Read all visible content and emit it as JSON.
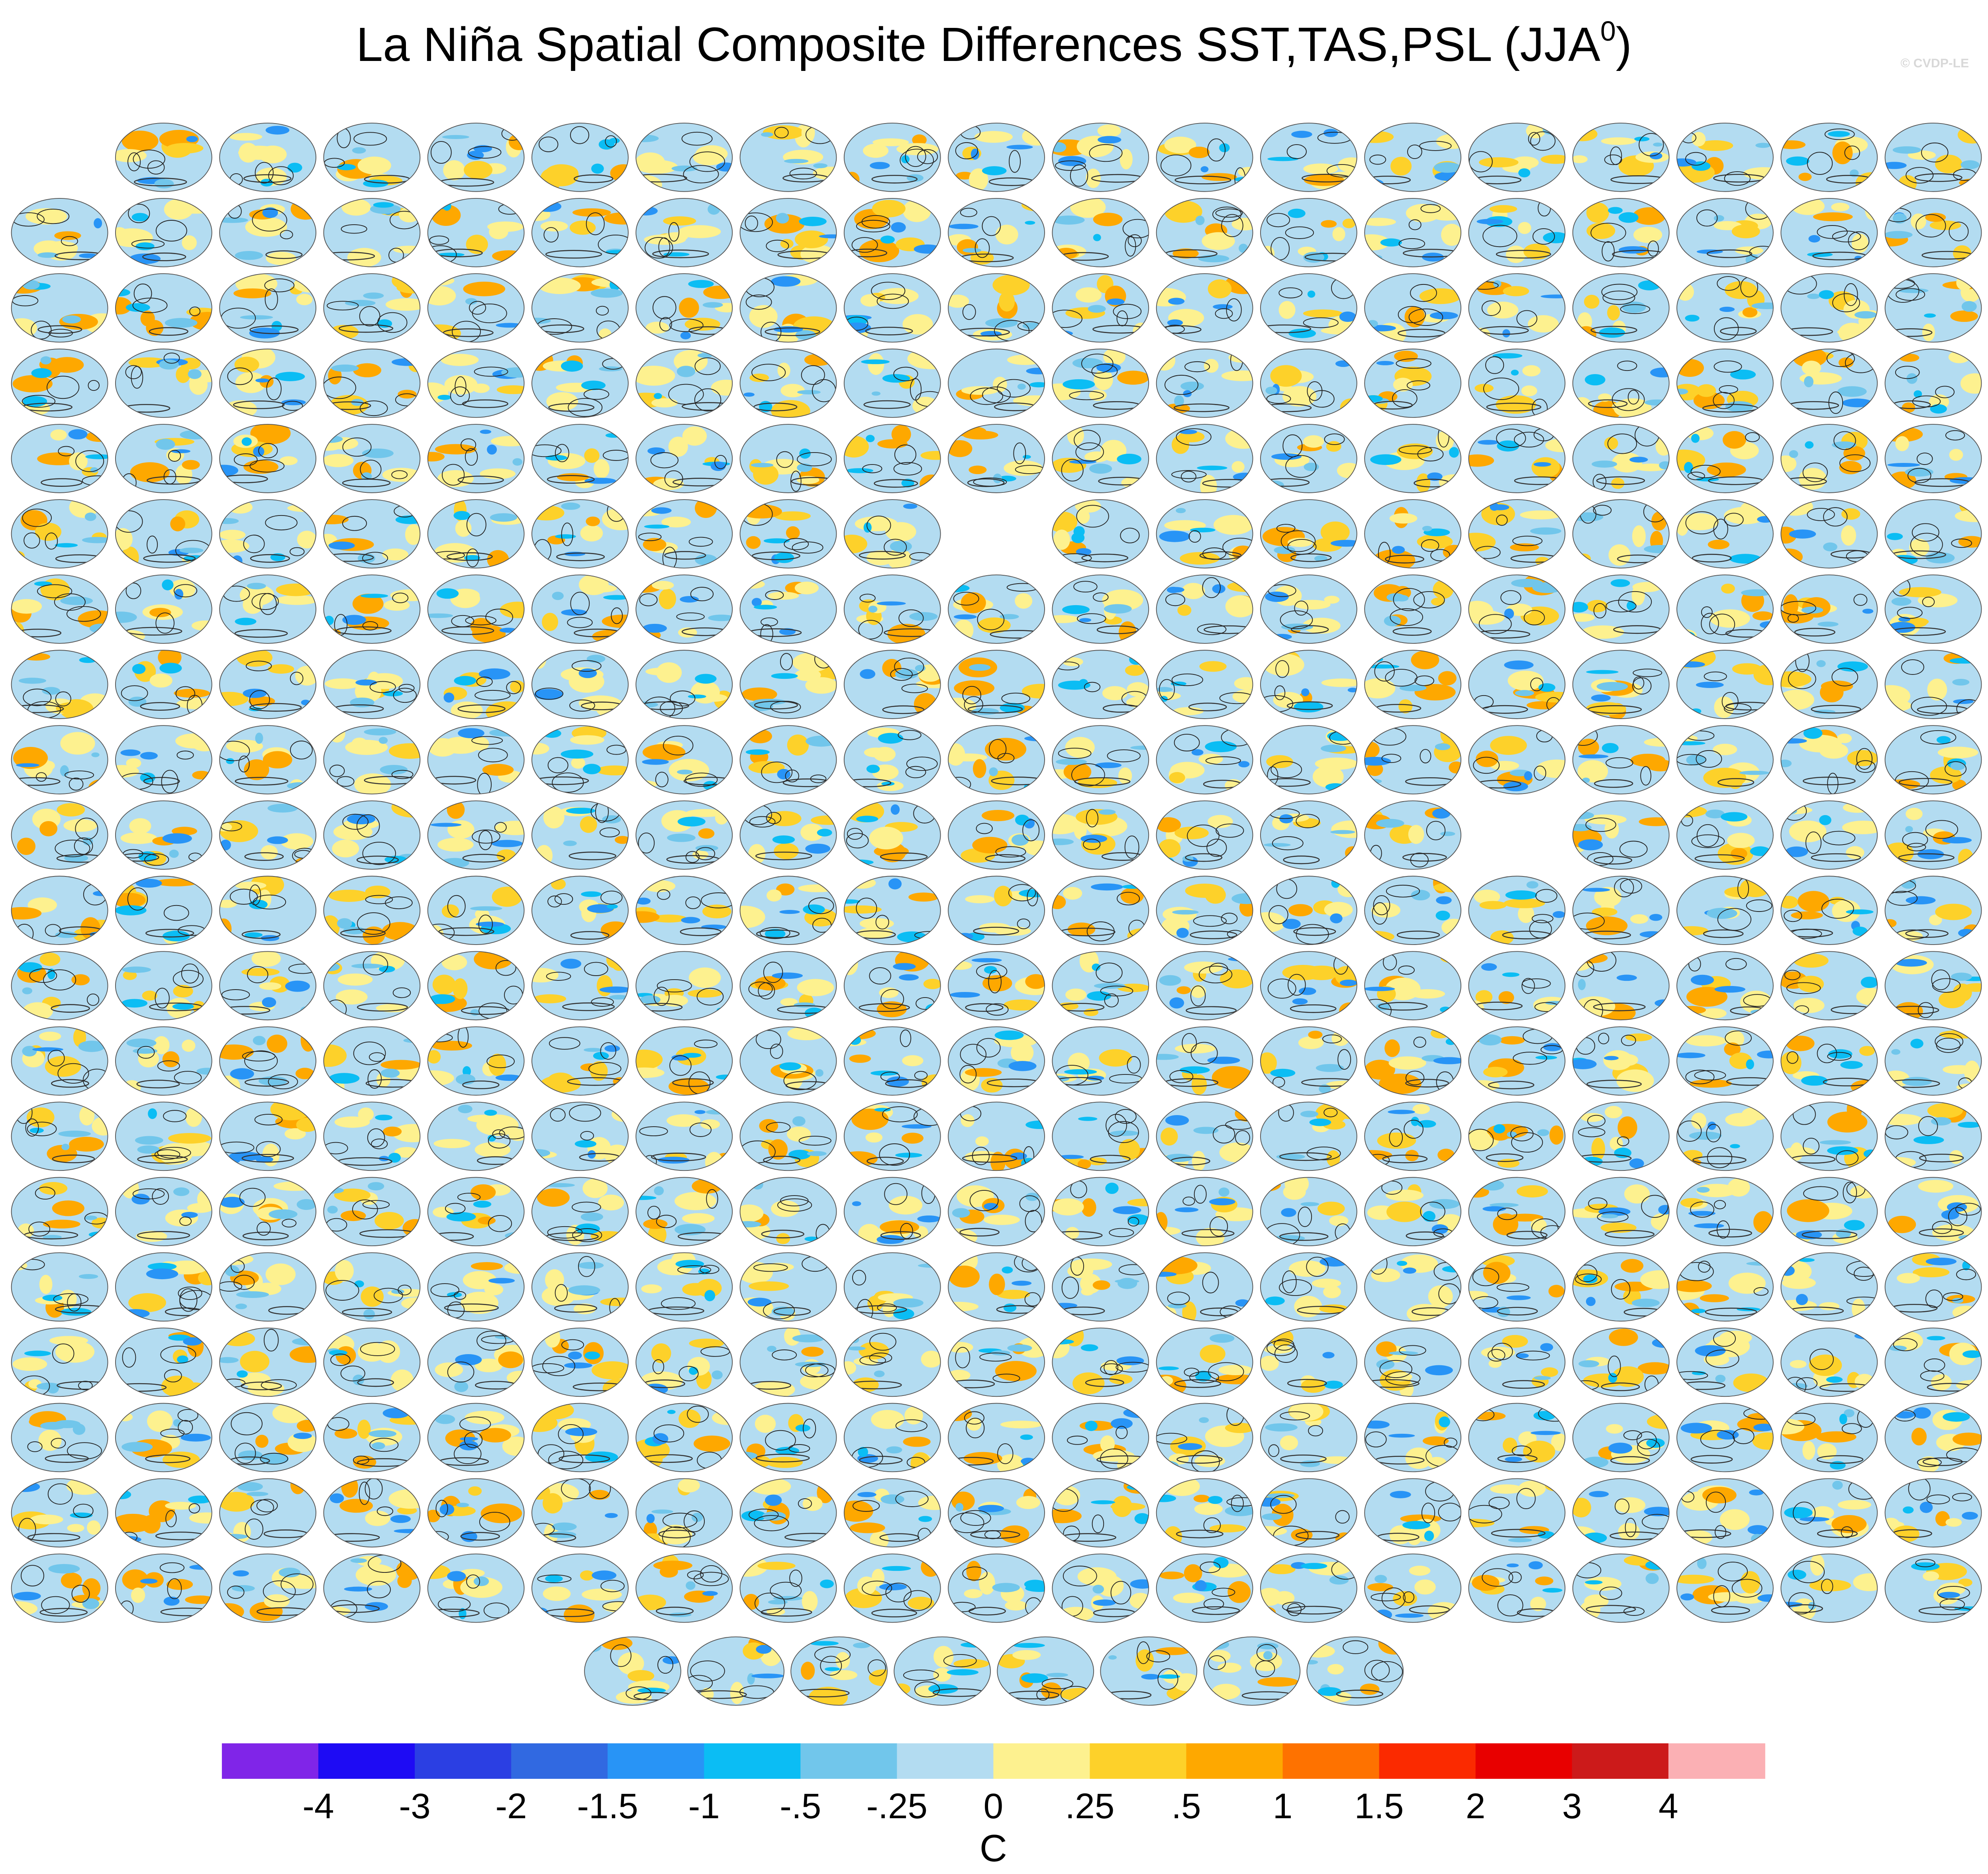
{
  "header": {
    "title_parts": [
      "La Niña Spatial Composite Differences SST,TAS,PSL (JJA",
      "0",
      ")"
    ],
    "watermark": "© CVDP-LE"
  },
  "colorbar": {
    "colors": [
      "#8025e8",
      "#1e0bf4",
      "#2b3fe3",
      "#3169e1",
      "#2894f6",
      "#0bbdf4",
      "#71c6eb",
      "#b3dcf1",
      "#fdf18f",
      "#fdd12a",
      "#fea800",
      "#fe7200",
      "#fb2a00",
      "#e80000",
      "#cc1a1a",
      "#fbb0b4"
    ],
    "ticks": [
      -4,
      -3,
      -2,
      -1.5,
      -1,
      {
        "value": -0.5,
        "label": "-.5"
      },
      {
        "value": -0.25,
        "label": "-.25"
      },
      0,
      {
        "value": 0.25,
        "label": ".25"
      },
      {
        "value": 0.5,
        "label": ".5"
      },
      1,
      1.5,
      2,
      3,
      4
    ],
    "unit": "C"
  }
}
